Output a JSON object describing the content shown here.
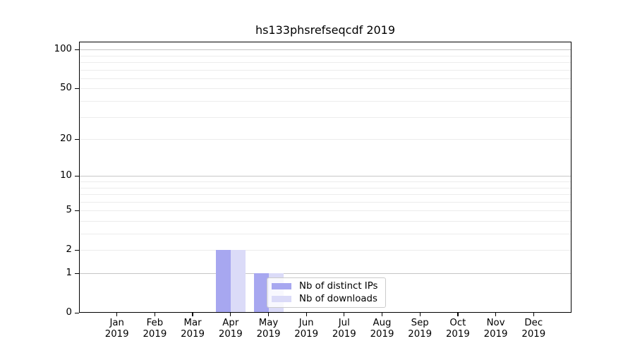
{
  "title": "hs133phsrefseqcdf 2019",
  "chart_data": {
    "type": "bar",
    "title": "hs133phsrefseqcdf 2019",
    "xlabel": "",
    "ylabel": "",
    "categories": [
      "Jan",
      "Feb",
      "Mar",
      "Apr",
      "May",
      "Jun",
      "Jul",
      "Aug",
      "Sep",
      "Oct",
      "Nov",
      "Dec"
    ],
    "x_year_label": "2019",
    "series": [
      {
        "name": "Nb of distinct IPs",
        "color": "#a7a7f0",
        "values": [
          0,
          0,
          0,
          2,
          1,
          0,
          0,
          0,
          0,
          0,
          0,
          0
        ]
      },
      {
        "name": "Nb of downloads",
        "color": "#dbdbf8",
        "values": [
          0,
          0,
          0,
          2,
          1,
          0,
          0,
          0,
          0,
          0,
          0,
          0
        ]
      }
    ],
    "y_scale": "log1p",
    "ylim": [
      0,
      115
    ],
    "y_ticks": [
      0,
      1,
      2,
      5,
      10,
      20,
      50,
      100
    ],
    "grid": {
      "major_values": [
        1,
        10,
        100
      ],
      "minor_values": [
        2,
        3,
        4,
        5,
        6,
        7,
        8,
        9,
        20,
        30,
        40,
        50,
        60,
        70,
        80,
        90
      ],
      "major_color": "#c6c6c6",
      "minor_color": "#ececec"
    },
    "legend_position": "lower center (inside plot, overlapping May bars)",
    "grid_on": true
  }
}
